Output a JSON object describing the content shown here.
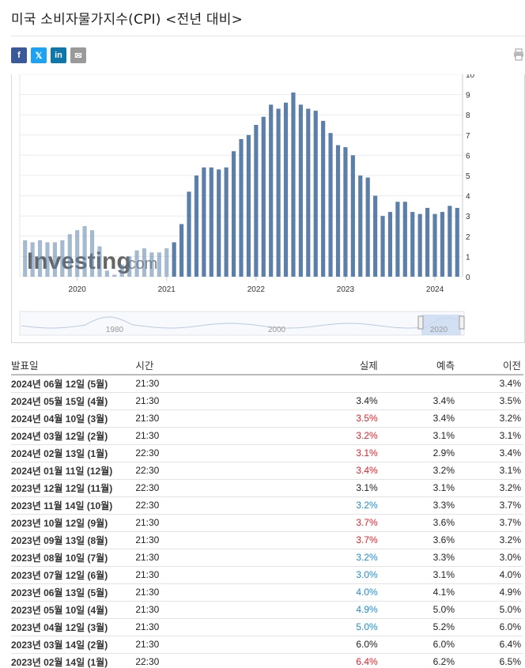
{
  "page": {
    "title": "미국 소비자물가지수(CPI) <전년 대비>"
  },
  "share": {
    "facebook": "f",
    "twitter": "𝕏",
    "linkedin": "in",
    "email": "✉"
  },
  "chart_data": {
    "type": "bar",
    "x_tick_labels": [
      "2020",
      "2021",
      "2022",
      "2023",
      "2024"
    ],
    "y_tick_labels": [
      "0",
      "1",
      "2",
      "3",
      "4",
      "5",
      "6",
      "7",
      "8",
      "9",
      "10"
    ],
    "ylim": [
      0,
      10
    ],
    "watermark": "Investing",
    "watermark_suffix": ".com",
    "bar_color": "#5b7fa8",
    "values": [
      1.8,
      1.7,
      1.8,
      1.7,
      1.7,
      1.8,
      2.1,
      2.3,
      2.5,
      2.3,
      1.5,
      0.3,
      0.1,
      0.6,
      1.0,
      1.3,
      1.4,
      1.2,
      1.2,
      1.4,
      1.7,
      2.6,
      4.2,
      5.0,
      5.4,
      5.4,
      5.3,
      5.4,
      6.2,
      6.8,
      7.0,
      7.5,
      7.9,
      8.5,
      8.3,
      8.6,
      9.1,
      8.5,
      8.3,
      8.2,
      7.7,
      7.1,
      6.5,
      6.4,
      6.0,
      5.0,
      4.9,
      4.0,
      3.0,
      3.2,
      3.7,
      3.7,
      3.2,
      3.1,
      3.4,
      3.1,
      3.2,
      3.5,
      3.4
    ],
    "navigator": {
      "tick_labels": [
        "1980",
        "2000",
        "2020"
      ]
    }
  },
  "table": {
    "headers": {
      "date": "발표일",
      "time": "시간",
      "actual": "실제",
      "forecast": "예측",
      "previous": "이전"
    },
    "rows": [
      {
        "date": "2024년 06월 12일 (5월)",
        "time": "21:30",
        "actual": "",
        "forecast": "",
        "previous": "3.4%"
      },
      {
        "date": "2024년 05월 15일 (4월)",
        "time": "21:30",
        "actual": "3.4%",
        "forecast": "3.4%",
        "previous": "3.5%"
      },
      {
        "date": "2024년 04월 10일 (3월)",
        "time": "21:30",
        "actual": "3.5%",
        "forecast": "3.4%",
        "previous": "3.2%"
      },
      {
        "date": "2024년 03월 12일 (2월)",
        "time": "21:30",
        "actual": "3.2%",
        "forecast": "3.1%",
        "previous": "3.1%"
      },
      {
        "date": "2024년 02월 13일 (1월)",
        "time": "22:30",
        "actual": "3.1%",
        "forecast": "2.9%",
        "previous": "3.4%"
      },
      {
        "date": "2024년 01월 11일 (12월)",
        "time": "22:30",
        "actual": "3.4%",
        "forecast": "3.2%",
        "previous": "3.1%"
      },
      {
        "date": "2023년 12월 12일 (11월)",
        "time": "22:30",
        "actual": "3.1%",
        "forecast": "3.1%",
        "previous": "3.2%"
      },
      {
        "date": "2023년 11월 14일 (10월)",
        "time": "22:30",
        "actual": "3.2%",
        "forecast": "3.3%",
        "previous": "3.7%"
      },
      {
        "date": "2023년 10월 12일 (9월)",
        "time": "21:30",
        "actual": "3.7%",
        "forecast": "3.6%",
        "previous": "3.7%"
      },
      {
        "date": "2023년 09월 13일 (8월)",
        "time": "21:30",
        "actual": "3.7%",
        "forecast": "3.6%",
        "previous": "3.2%"
      },
      {
        "date": "2023년 08월 10일 (7월)",
        "time": "21:30",
        "actual": "3.2%",
        "forecast": "3.3%",
        "previous": "3.0%"
      },
      {
        "date": "2023년 07월 12일 (6월)",
        "time": "21:30",
        "actual": "3.0%",
        "forecast": "3.1%",
        "previous": "4.0%"
      },
      {
        "date": "2023년 06월 13일 (5월)",
        "time": "21:30",
        "actual": "4.0%",
        "forecast": "4.1%",
        "previous": "4.9%"
      },
      {
        "date": "2023년 05월 10일 (4월)",
        "time": "21:30",
        "actual": "4.9%",
        "forecast": "5.0%",
        "previous": "5.0%"
      },
      {
        "date": "2023년 04월 12일 (3월)",
        "time": "21:30",
        "actual": "5.0%",
        "forecast": "5.2%",
        "previous": "6.0%"
      },
      {
        "date": "2023년 03월 14일 (2월)",
        "time": "21:30",
        "actual": "6.0%",
        "forecast": "6.0%",
        "previous": "6.4%"
      },
      {
        "date": "2023년 02월 14일 (1월)",
        "time": "22:30",
        "actual": "6.4%",
        "forecast": "6.2%",
        "previous": "6.5%"
      }
    ]
  },
  "colors": {
    "above_forecast": "#e8202a",
    "below_forecast": "#1b8fd3"
  }
}
